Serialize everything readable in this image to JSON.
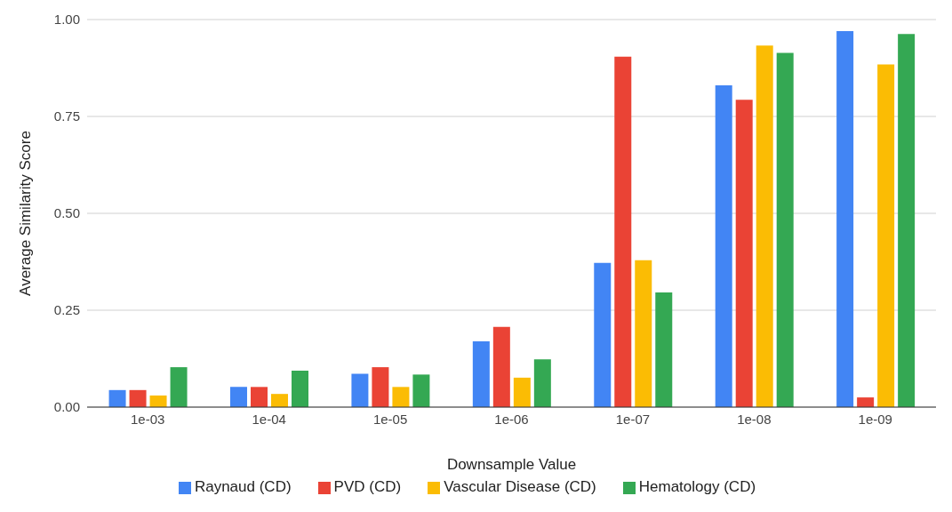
{
  "chart_data": {
    "type": "bar",
    "xlabel": "Downsample Value",
    "ylabel": "Average Similarity Score",
    "categories": [
      "1e-03",
      "1e-04",
      "1e-05",
      "1e-06",
      "1e-07",
      "1e-08",
      "1e-09"
    ],
    "series": [
      {
        "name": "Raynaud (CD)",
        "color": "#4285f4",
        "values": [
          0.044,
          0.052,
          0.086,
          0.17,
          0.372,
          0.83,
          0.97
        ]
      },
      {
        "name": "PVD (CD)",
        "color": "#ea4335",
        "values": [
          0.044,
          0.052,
          0.103,
          0.207,
          0.904,
          0.793,
          0.025
        ]
      },
      {
        "name": "Vascular Disease (CD)",
        "color": "#fbbc04",
        "values": [
          0.03,
          0.034,
          0.052,
          0.076,
          0.379,
          0.933,
          0.884
        ]
      },
      {
        "name": "Hematology (CD)",
        "color": "#34a853",
        "values": [
          0.103,
          0.094,
          0.084,
          0.123,
          0.296,
          0.914,
          0.963
        ]
      }
    ],
    "ylim": [
      0,
      1
    ],
    "yticks": [
      {
        "value": 0,
        "label": "0.00"
      },
      {
        "value": 0.25,
        "label": "0.25"
      },
      {
        "value": 0.5,
        "label": "0.50"
      },
      {
        "value": 0.75,
        "label": "0.75"
      },
      {
        "value": 1,
        "label": "1.00"
      }
    ],
    "grid": "y",
    "legend": "bottom"
  }
}
